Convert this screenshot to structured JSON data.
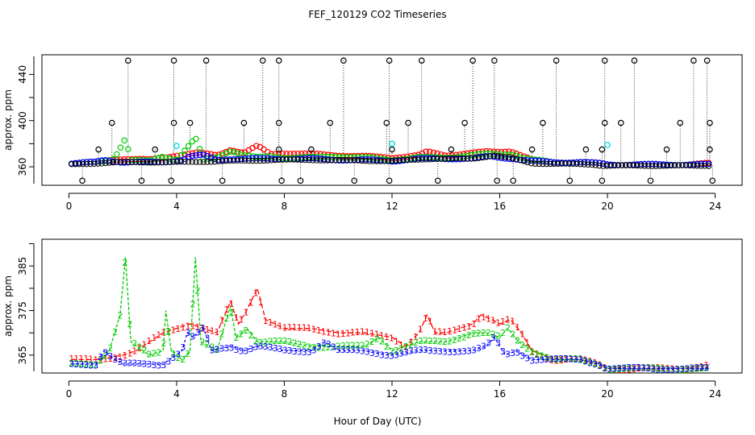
{
  "title": "FEF_120129  CO2 Timeseries",
  "xlabel": "Hour of Day (UTC)",
  "colors": {
    "black": "#000000",
    "red": "#ff0000",
    "green": "#00cc00",
    "blue": "#0000ff",
    "cyan": "#00d8d8"
  },
  "chart_data": [
    {
      "type": "scatter",
      "ylabel": "approx. ppm",
      "xlim": [
        -1,
        25
      ],
      "ylim": [
        344,
        457
      ],
      "xticks": [
        0,
        4,
        8,
        12,
        16,
        20,
        24
      ],
      "yticks": [
        360,
        400,
        440
      ],
      "xtick_labels": [
        "0",
        "4",
        "8",
        "12",
        "16",
        "20",
        "24"
      ],
      "ytick_labels": [
        "360",
        "400",
        "440"
      ],
      "series": [
        {
          "name": "black",
          "color": "#000000",
          "baseline_segments": [
            [
              0.1,
              362
            ],
            [
              1.0,
              363
            ],
            [
              2.0,
              364
            ],
            [
              4.0,
              364
            ],
            [
              6.0,
              365
            ],
            [
              7.8,
              366
            ],
            [
              9.0,
              366
            ],
            [
              12.0,
              365
            ],
            [
              13.5,
              367
            ],
            [
              15.0,
              367
            ],
            [
              15.8,
              370
            ],
            [
              16.5,
              367
            ],
            [
              17.2,
              363
            ],
            [
              19.5,
              362
            ],
            [
              19.8,
              361
            ],
            [
              20.2,
              361
            ],
            [
              23.8,
              361
            ]
          ],
          "spikes_high": [
            2.2,
            3.9,
            5.1,
            7.2,
            7.8,
            10.2,
            11.9,
            13.1,
            15.0,
            15.8,
            18.1,
            19.9,
            21.0,
            23.2,
            23.7
          ],
          "spikes_mid": [
            1.6,
            3.9,
            4.5,
            6.5,
            7.8,
            9.7,
            11.8,
            12.6,
            14.7,
            17.6,
            19.9,
            20.5,
            22.7,
            23.8
          ],
          "spikes_low": [
            1.1,
            3.2,
            7.8,
            9.0,
            12.0,
            14.2,
            17.2,
            19.2,
            19.8,
            22.2,
            23.8
          ],
          "dips": [
            0.5,
            2.7,
            3.8,
            5.7,
            7.9,
            8.6,
            10.6,
            11.9,
            13.7,
            15.9,
            16.5,
            18.6,
            19.8,
            21.6,
            23.9
          ]
        },
        {
          "name": "red",
          "color": "#ff0000",
          "values": [
            [
              0.1,
              363
            ],
            [
              1.0,
              364
            ],
            [
              1.5,
              366
            ],
            [
              2.0,
              367
            ],
            [
              3.0,
              366
            ],
            [
              3.5,
              368
            ],
            [
              4.0,
              370
            ],
            [
              4.8,
              372
            ],
            [
              5.5,
              370
            ],
            [
              6.0,
              375
            ],
            [
              6.5,
              372
            ],
            [
              7.0,
              378
            ],
            [
              7.5,
              371
            ],
            [
              8.0,
              372
            ],
            [
              9.0,
              371
            ],
            [
              10.0,
              370
            ],
            [
              11.0,
              369
            ],
            [
              12.0,
              368
            ],
            [
              13.0,
              370
            ],
            [
              13.3,
              373
            ],
            [
              14.0,
              370
            ],
            [
              15.0,
              372
            ],
            [
              15.5,
              373
            ],
            [
              16.0,
              373
            ],
            [
              16.4,
              374
            ],
            [
              16.8,
              370
            ],
            [
              17.2,
              366
            ],
            [
              18.0,
              364
            ],
            [
              19.0,
              364
            ],
            [
              19.7,
              363
            ],
            [
              20.0,
              362
            ],
            [
              21.0,
              362
            ],
            [
              22.0,
              362
            ],
            [
              23.0,
              362
            ],
            [
              23.8,
              363
            ]
          ]
        },
        {
          "name": "green",
          "color": "#00cc00",
          "values": [
            [
              0.1,
              363
            ],
            [
              1.0,
              364
            ],
            [
              1.6,
              366
            ],
            [
              1.8,
              372
            ],
            [
              2.1,
              385
            ],
            [
              2.3,
              366
            ],
            [
              3.0,
              365
            ],
            [
              3.5,
              369
            ],
            [
              4.0,
              366
            ],
            [
              4.7,
              385
            ],
            [
              5.0,
              366
            ],
            [
              5.5,
              368
            ],
            [
              6.0,
              374
            ],
            [
              6.5,
              370
            ],
            [
              7.0,
              368
            ],
            [
              7.5,
              369
            ],
            [
              8.0,
              368
            ],
            [
              9.0,
              368
            ],
            [
              10.0,
              369
            ],
            [
              11.0,
              368
            ],
            [
              12.0,
              366
            ],
            [
              13.0,
              368
            ],
            [
              14.0,
              368
            ],
            [
              15.0,
              370
            ],
            [
              15.5,
              371
            ],
            [
              16.0,
              371
            ],
            [
              16.5,
              371
            ],
            [
              16.8,
              368
            ],
            [
              17.2,
              366
            ],
            [
              18.0,
              364
            ],
            [
              19.0,
              364
            ],
            [
              19.7,
              363
            ],
            [
              20.0,
              362
            ],
            [
              21.0,
              362
            ],
            [
              22.0,
              362
            ],
            [
              23.0,
              362
            ],
            [
              23.8,
              362
            ]
          ]
        },
        {
          "name": "blue",
          "color": "#0000ff",
          "values": [
            [
              0.1,
              363
            ],
            [
              1.0,
              364
            ],
            [
              1.3,
              366
            ],
            [
              2.0,
              364
            ],
            [
              3.0,
              364
            ],
            [
              3.5,
              364
            ],
            [
              4.2,
              366
            ],
            [
              4.5,
              369
            ],
            [
              5.0,
              370
            ],
            [
              5.5,
              366
            ],
            [
              6.0,
              367
            ],
            [
              7.0,
              367
            ],
            [
              8.0,
              367
            ],
            [
              9.0,
              367
            ],
            [
              10.0,
              366
            ],
            [
              11.0,
              366
            ],
            [
              12.0,
              365
            ],
            [
              13.0,
              367
            ],
            [
              14.0,
              367
            ],
            [
              15.0,
              367
            ],
            [
              15.6,
              369
            ],
            [
              16.0,
              368
            ],
            [
              16.5,
              367
            ],
            [
              17.2,
              365
            ],
            [
              18.0,
              364
            ],
            [
              19.0,
              364
            ],
            [
              19.7,
              363
            ],
            [
              20.0,
              362
            ],
            [
              21.0,
              362
            ],
            [
              22.0,
              362
            ],
            [
              23.0,
              362
            ],
            [
              23.8,
              362
            ]
          ]
        },
        {
          "name": "cyan",
          "color": "#00d8d8",
          "points": [
            [
              4.0,
              378
            ],
            [
              12.0,
              380
            ],
            [
              20.0,
              379
            ]
          ]
        }
      ]
    },
    {
      "type": "line",
      "ylabel": "approx. ppm",
      "xlim": [
        -1,
        25
      ],
      "ylim": [
        361,
        391
      ],
      "xticks": [
        0,
        4,
        8,
        12,
        16,
        20,
        24
      ],
      "yticks": [
        365,
        375,
        385
      ],
      "xtick_labels": [
        "0",
        "4",
        "8",
        "12",
        "16",
        "20",
        "24"
      ],
      "ytick_labels": [
        "365",
        "375",
        "385"
      ],
      "series": [
        {
          "name": "1",
          "symbol": "1",
          "color": "#ff0000",
          "values": [
            [
              0.1,
              364
            ],
            [
              1.0,
              364
            ],
            [
              2.0,
              365
            ],
            [
              2.5,
              366
            ],
            [
              3.0,
              368
            ],
            [
              3.5,
              370
            ],
            [
              4.0,
              371
            ],
            [
              4.5,
              372
            ],
            [
              5.0,
              371
            ],
            [
              5.5,
              370
            ],
            [
              6.0,
              377
            ],
            [
              6.3,
              372
            ],
            [
              6.6,
              375
            ],
            [
              7.0,
              380
            ],
            [
              7.3,
              373
            ],
            [
              8.0,
              371
            ],
            [
              9.0,
              371
            ],
            [
              10.0,
              370
            ],
            [
              11.0,
              370
            ],
            [
              12.0,
              369
            ],
            [
              12.5,
              367
            ],
            [
              13.0,
              370
            ],
            [
              13.3,
              374
            ],
            [
              13.6,
              370
            ],
            [
              14.0,
              370
            ],
            [
              14.5,
              371
            ],
            [
              15.0,
              372
            ],
            [
              15.3,
              374
            ],
            [
              15.7,
              373
            ],
            [
              16.0,
              372
            ],
            [
              16.4,
              373
            ],
            [
              16.8,
              370
            ],
            [
              17.2,
              366
            ],
            [
              18.0,
              364
            ],
            [
              19.0,
              364
            ],
            [
              19.7,
              363
            ],
            [
              20.0,
              362
            ],
            [
              21.0,
              362
            ],
            [
              22.0,
              362
            ],
            [
              23.0,
              362
            ],
            [
              23.8,
              363
            ]
          ]
        },
        {
          "name": "2",
          "symbol": "2",
          "color": "#00cc00",
          "values": [
            [
              0.1,
              363
            ],
            [
              1.0,
              363
            ],
            [
              1.5,
              366
            ],
            [
              1.9,
              374
            ],
            [
              2.1,
              387
            ],
            [
              2.3,
              368
            ],
            [
              3.0,
              365
            ],
            [
              3.5,
              366
            ],
            [
              3.6,
              375
            ],
            [
              3.8,
              366
            ],
            [
              4.2,
              364
            ],
            [
              4.5,
              366
            ],
            [
              4.7,
              387
            ],
            [
              4.9,
              368
            ],
            [
              5.5,
              366
            ],
            [
              6.0,
              376
            ],
            [
              6.2,
              369
            ],
            [
              6.6,
              371
            ],
            [
              7.0,
              368
            ],
            [
              7.5,
              368
            ],
            [
              8.0,
              368
            ],
            [
              9.0,
              367
            ],
            [
              10.0,
              367
            ],
            [
              11.0,
              367
            ],
            [
              11.5,
              369
            ],
            [
              12.0,
              366
            ],
            [
              13.0,
              368
            ],
            [
              14.0,
              368
            ],
            [
              15.0,
              370
            ],
            [
              15.5,
              370
            ],
            [
              16.0,
              369
            ],
            [
              16.3,
              371
            ],
            [
              16.7,
              368
            ],
            [
              17.2,
              366
            ],
            [
              18.0,
              364
            ],
            [
              19.0,
              364
            ],
            [
              19.7,
              363
            ],
            [
              20.0,
              362
            ],
            [
              21.0,
              362
            ],
            [
              22.0,
              362
            ],
            [
              23.0,
              362
            ],
            [
              23.8,
              362
            ]
          ]
        },
        {
          "name": "3",
          "symbol": "3",
          "color": "#0000ff",
          "values": [
            [
              0.1,
              363
            ],
            [
              1.0,
              363
            ],
            [
              1.3,
              366
            ],
            [
              1.7,
              364
            ],
            [
              2.0,
              363
            ],
            [
              3.0,
              363
            ],
            [
              3.5,
              363
            ],
            [
              4.2,
              366
            ],
            [
              4.4,
              370
            ],
            [
              4.6,
              369
            ],
            [
              5.0,
              371
            ],
            [
              5.3,
              366
            ],
            [
              6.0,
              367
            ],
            [
              6.5,
              366
            ],
            [
              7.0,
              367
            ],
            [
              8.0,
              366
            ],
            [
              9.0,
              366
            ],
            [
              9.5,
              368
            ],
            [
              10.0,
              366
            ],
            [
              11.0,
              366
            ],
            [
              12.0,
              365
            ],
            [
              13.0,
              366
            ],
            [
              14.0,
              366
            ],
            [
              15.0,
              366
            ],
            [
              15.5,
              367
            ],
            [
              15.8,
              369
            ],
            [
              16.2,
              365
            ],
            [
              16.6,
              366
            ],
            [
              17.2,
              364
            ],
            [
              18.0,
              364
            ],
            [
              19.0,
              364
            ],
            [
              19.7,
              363
            ],
            [
              20.0,
              362
            ],
            [
              21.0,
              362
            ],
            [
              22.0,
              362
            ],
            [
              23.0,
              362
            ],
            [
              23.8,
              362
            ]
          ]
        }
      ]
    }
  ]
}
